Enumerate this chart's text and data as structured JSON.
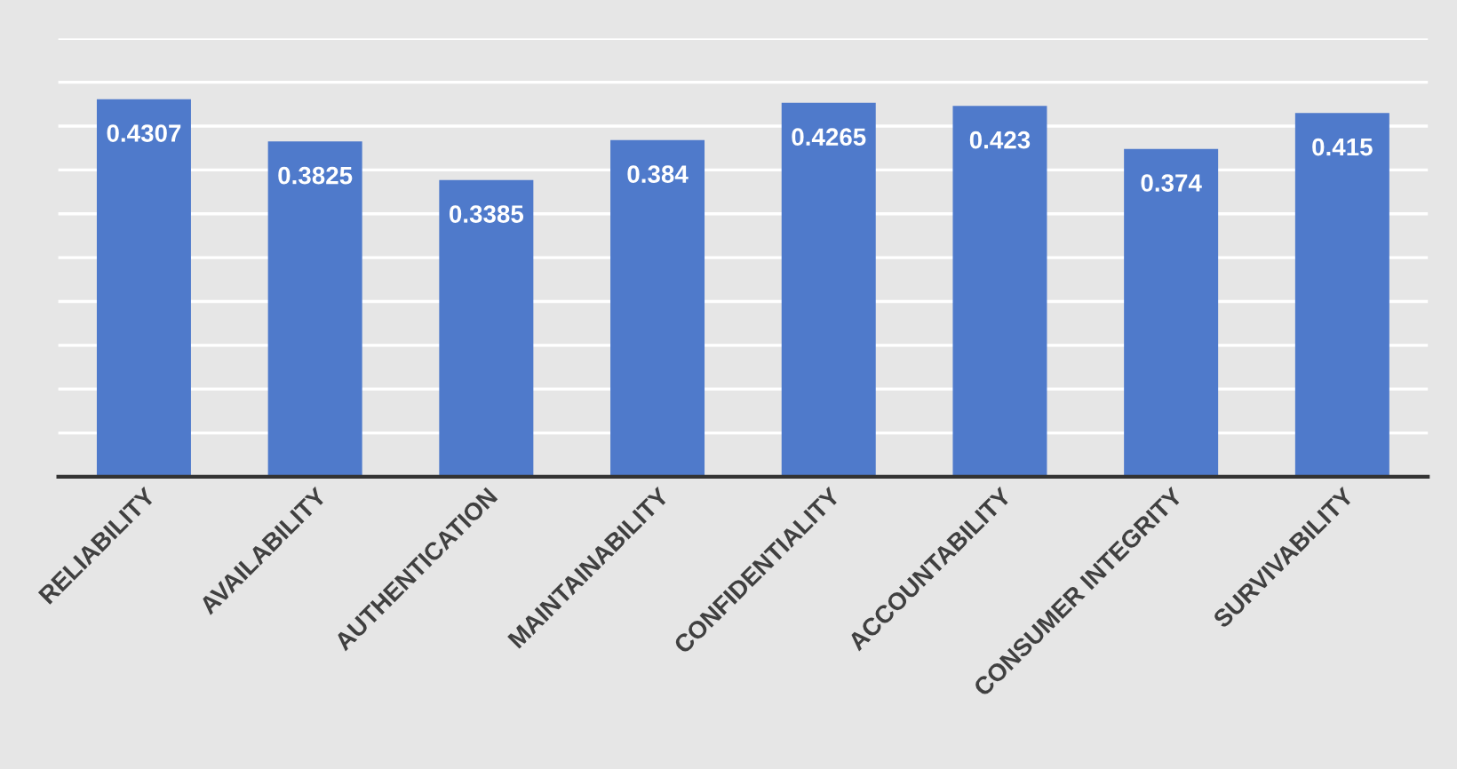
{
  "chart_data": {
    "type": "bar",
    "categories": [
      "RELIABILITY",
      "AVAILABILITY",
      "AUTHENTICATION",
      "MAINTAINABILITY",
      "CONFIDENTIALITY",
      "ACCOUNTABILITY",
      "CONSUMER INTEGRITY",
      "SURVIVABILITY"
    ],
    "values": [
      0.4307,
      0.3825,
      0.3385,
      0.384,
      0.4265,
      0.423,
      0.374,
      0.415
    ],
    "color": "#4f7acb",
    "data_labels": true,
    "ylim": [
      0,
      0.5
    ],
    "yticks": [
      {
        "value": 0,
        "label": null
      },
      {
        "value": 0.05,
        "label": null
      },
      {
        "value": 0.1,
        "label": null
      },
      {
        "value": 0.15,
        "label": null
      },
      {
        "value": 0.2,
        "label": null
      },
      {
        "value": 0.25,
        "label": null
      },
      {
        "value": 0.3,
        "label": null
      },
      {
        "value": 0.35,
        "label": null
      },
      {
        "value": 0.4,
        "label": null
      },
      {
        "value": 0.45,
        "label": null
      },
      {
        "value": 0.5,
        "label": null
      }
    ],
    "tick_labels": "x",
    "grid": "y",
    "legend": false
  }
}
